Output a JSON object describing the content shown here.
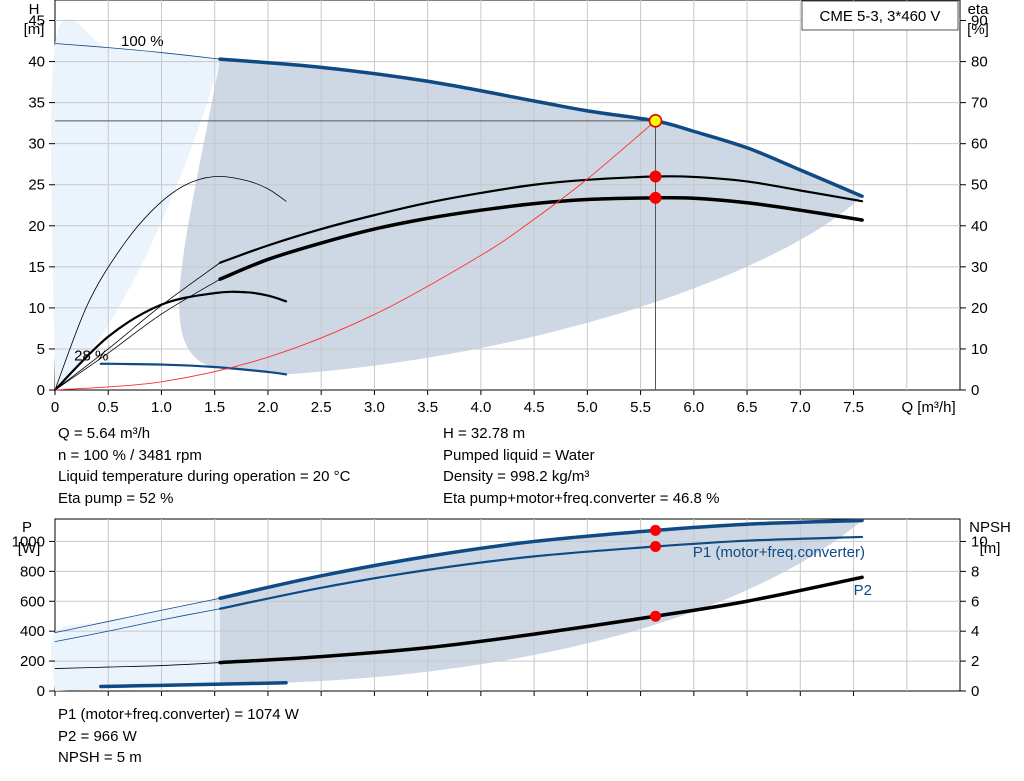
{
  "title_box": "CME 5-3, 3*460 V",
  "info_top_left": [
    "Q = 5.64 m³/h",
    "n = 100 % / 3481 rpm",
    "Liquid temperature during operation = 20 °C",
    "Eta pump = 52 %"
  ],
  "info_top_right": [
    "H = 32.78 m",
    "Pumped liquid = Water",
    "Density = 998.2 kg/m³",
    "Eta pump+motor+freq.converter = 46.8 %"
  ],
  "info_bottom": [
    "P1 (motor+freq.converter) = 1074 W",
    "P2 = 966 W",
    "NPSH = 5 m"
  ],
  "colors": {
    "curve_blue": "#0f4a85",
    "curve_black": "#000000",
    "region_fill": "#cdd8e4",
    "light_fill": "#ebf4fc",
    "grid": "#c8c8c8",
    "duty_point": "#ff0000",
    "duty_marker": "#ffff00",
    "system_curve": "#ff3030"
  },
  "chart_data": [
    {
      "type": "line",
      "name": "head-efficiency",
      "x_axis": {
        "label": "Q [m³/h]",
        "range": [
          0,
          8.5
        ],
        "ticks": [
          0,
          0.5,
          1.0,
          1.5,
          2.0,
          2.5,
          3.0,
          3.5,
          4.0,
          4.5,
          5.0,
          5.5,
          6.0,
          6.5,
          7.0,
          7.5
        ],
        "tick_labels": [
          "0",
          "0.5",
          "1.0",
          "1.5",
          "2.0",
          "2.5",
          "3.0",
          "3.5",
          "4.0",
          "4.5",
          "5.0",
          "5.5",
          "6.0",
          "6.5",
          "7.0",
          "7.5"
        ]
      },
      "y_left": {
        "label_top": "H",
        "label_unit": "[m]",
        "range": [
          0,
          47.5
        ],
        "ticks": [
          0,
          5,
          10,
          15,
          20,
          25,
          30,
          35,
          40,
          45
        ]
      },
      "y_right": {
        "label_top": "eta",
        "label_unit": "[%]",
        "range": [
          0,
          95
        ],
        "ticks": [
          0,
          10,
          20,
          30,
          40,
          50,
          60,
          70,
          80,
          90
        ]
      },
      "grid": true,
      "annotations": [
        {
          "text": "100 %",
          "x": 0.62,
          "y": 42.5
        },
        {
          "text": "28 %",
          "x": 0.18,
          "y": 4.2
        }
      ],
      "duty_point": {
        "q": 5.64,
        "h": 32.78,
        "eta_pump": 52,
        "eta_total": 46.8
      },
      "series": [
        {
          "key": "head_100",
          "style": "blue_thick",
          "x": [
            1.55,
            2.5,
            3.5,
            4.5,
            5.0,
            5.64,
            6.0,
            6.5,
            7.0,
            7.58
          ],
          "y": [
            40.3,
            39.3,
            37.6,
            35.2,
            34.0,
            32.78,
            31.5,
            29.5,
            26.8,
            23.6
          ]
        },
        {
          "key": "head_100_ext",
          "style": "blue_thin",
          "x": [
            0,
            0.5,
            1.0,
            1.55
          ],
          "y": [
            42.2,
            41.7,
            41.1,
            40.3
          ]
        },
        {
          "key": "head_28",
          "style": "blue_medium",
          "x": [
            0.43,
            1.0,
            1.5,
            2.0,
            2.17
          ],
          "y": [
            3.2,
            3.1,
            2.8,
            2.2,
            1.9
          ]
        },
        {
          "key": "eta_pump",
          "style": "black_medium",
          "x": [
            1.55,
            2.0,
            2.5,
            3.0,
            3.5,
            4.0,
            4.5,
            5.0,
            5.64,
            6.0,
            6.5,
            7.0,
            7.58
          ],
          "y": [
            31.0,
            35.2,
            39.2,
            42.6,
            45.6,
            48.0,
            50.0,
            51.2,
            52.0,
            51.9,
            50.8,
            48.6,
            46.0
          ]
        },
        {
          "key": "eta_pump_lowflow",
          "style": "black_thin",
          "x": [
            0,
            0.3,
            0.6,
            0.9,
            1.2,
            1.5,
            1.8,
            2.0,
            2.17
          ],
          "y": [
            0,
            20.5,
            33.8,
            43.4,
            49.6,
            52.0,
            51.0,
            49.0,
            46.0
          ]
        },
        {
          "key": "eta_pump_ext",
          "style": "black_thin",
          "x": [
            0,
            0.5,
            1.0,
            1.55
          ],
          "y": [
            0,
            10.0,
            20.6,
            31.0
          ]
        },
        {
          "key": "eta_total",
          "style": "black_thick",
          "x": [
            1.55,
            2.0,
            2.5,
            3.0,
            3.5,
            4.0,
            4.5,
            5.0,
            5.64,
            6.0,
            6.5,
            7.0,
            7.58
          ],
          "y": [
            27.0,
            31.8,
            35.8,
            39.2,
            41.8,
            43.8,
            45.4,
            46.4,
            46.8,
            46.7,
            45.6,
            43.8,
            41.4
          ]
        },
        {
          "key": "eta_total_ext",
          "style": "black_thin",
          "x": [
            0,
            0.5,
            1.0,
            1.55
          ],
          "y": [
            0,
            9.0,
            18.5,
            27.0
          ]
        },
        {
          "key": "eta_total_28",
          "style": "black_medium",
          "x": [
            0,
            0.5,
            1.0,
            1.5,
            1.8,
            2.0,
            2.17
          ],
          "y": [
            0,
            13.0,
            20.8,
            23.6,
            23.8,
            23.0,
            21.6
          ]
        },
        {
          "key": "system_curve",
          "style": "red_thin",
          "x": [
            0,
            1.0,
            2.0,
            3.0,
            4.0,
            4.5,
            5.0,
            5.64
          ],
          "y": [
            0,
            1.0,
            4.0,
            9.2,
            16.4,
            20.8,
            25.7,
            32.78
          ]
        }
      ]
    },
    {
      "type": "line",
      "name": "power-npsh",
      "x_axis": {
        "range": [
          0,
          8.5
        ]
      },
      "y_left": {
        "label_top": "P",
        "label_unit": "[W]",
        "range": [
          0,
          1150
        ],
        "ticks": [
          0,
          200,
          400,
          600,
          800,
          1000
        ]
      },
      "y_right": {
        "label_top": "NPSH",
        "label_unit": "[m]",
        "range": [
          0,
          11.5
        ],
        "ticks": [
          0,
          2,
          4,
          6,
          8,
          10
        ]
      },
      "grid": true,
      "duty_point": {
        "q": 5.64,
        "p1": 1074,
        "p2": 966,
        "npsh": 5
      },
      "series": [
        {
          "key": "p1",
          "name": "P1 (motor+freq.converter)",
          "style": "blue_thick",
          "x": [
            1.55,
            2.5,
            3.5,
            4.5,
            5.64,
            6.5,
            7.58
          ],
          "y": [
            620,
            770,
            900,
            1000,
            1074,
            1115,
            1140
          ]
        },
        {
          "key": "p1_ext",
          "style": "blue_thin",
          "x": [
            0,
            0.5,
            1.0,
            1.55
          ],
          "y": [
            390,
            465,
            540,
            620
          ]
        },
        {
          "key": "p2",
          "name": "P2",
          "style": "blue_medium",
          "x": [
            1.55,
            2.5,
            3.5,
            4.5,
            5.64,
            6.5,
            7.58
          ],
          "y": [
            550,
            690,
            810,
            900,
            966,
            1005,
            1030
          ]
        },
        {
          "key": "p2_ext",
          "style": "blue_thin",
          "x": [
            0,
            0.5,
            1.0,
            1.55
          ],
          "y": [
            330,
            400,
            475,
            550
          ]
        },
        {
          "key": "npsh",
          "style": "black_thick",
          "x": [
            1.55,
            2.5,
            3.5,
            4.5,
            5.64,
            6.5,
            7.58
          ],
          "y": [
            1.9,
            2.3,
            2.9,
            3.8,
            5.0,
            6.0,
            7.6
          ]
        },
        {
          "key": "npsh_ext",
          "style": "black_thin",
          "x": [
            0,
            0.5,
            1.0,
            1.55
          ],
          "y": [
            1.5,
            1.6,
            1.7,
            1.9
          ]
        },
        {
          "key": "p1_28",
          "style": "blue_thick",
          "x": [
            0.43,
            1.0,
            1.5,
            2.17
          ],
          "y": [
            30,
            38,
            45,
            55
          ]
        }
      ]
    }
  ]
}
